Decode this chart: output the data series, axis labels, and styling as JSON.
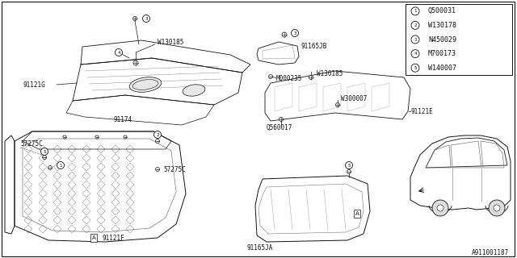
{
  "background_color": "#ffffff",
  "diagram_id": "A911001187",
  "legend_items": [
    {
      "num": "1",
      "code": "Q500031"
    },
    {
      "num": "2",
      "code": "W130178"
    },
    {
      "num": "3",
      "code": "N450029"
    },
    {
      "num": "4",
      "code": "M700173"
    },
    {
      "num": "5",
      "code": "W140007"
    }
  ],
  "line_color": "#555555",
  "font_size": 5.5,
  "font_size_label": 6.0
}
